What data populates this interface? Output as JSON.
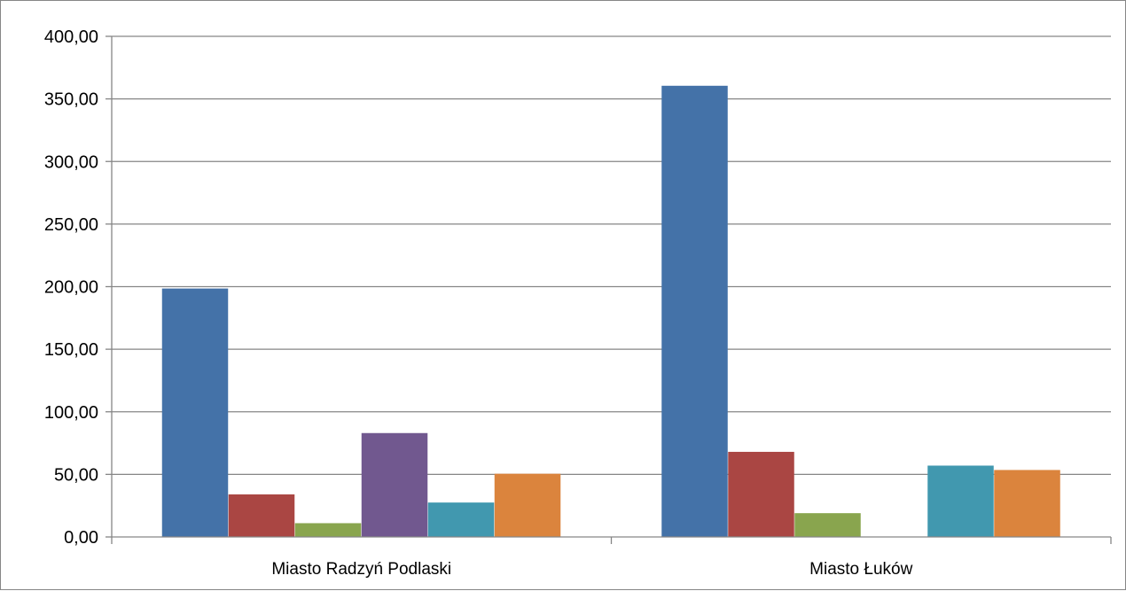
{
  "chart_data": {
    "type": "bar",
    "categories": [
      "Miasto Radzyń Podlaski",
      "Miasto Łuków"
    ],
    "series": [
      {
        "color": "#4472A8",
        "values": [
          198.5,
          360.5
        ]
      },
      {
        "color": "#AA4643",
        "values": [
          34.0,
          68.0
        ]
      },
      {
        "color": "#89A54E",
        "values": [
          11.0,
          19.0
        ]
      },
      {
        "color": "#71588F",
        "values": [
          83.0,
          0
        ]
      },
      {
        "color": "#4198AF",
        "values": [
          27.5,
          57.0
        ]
      },
      {
        "color": "#DB843D",
        "values": [
          50.5,
          53.5
        ]
      }
    ],
    "ylim": [
      0,
      400
    ],
    "y_ticks": [
      "0,00",
      "50,00",
      "100,00",
      "150,00",
      "200,00",
      "250,00",
      "300,00",
      "350,00",
      "400,00"
    ],
    "grid": true,
    "legend": "none",
    "title": "",
    "xlabel": "",
    "ylabel": ""
  }
}
